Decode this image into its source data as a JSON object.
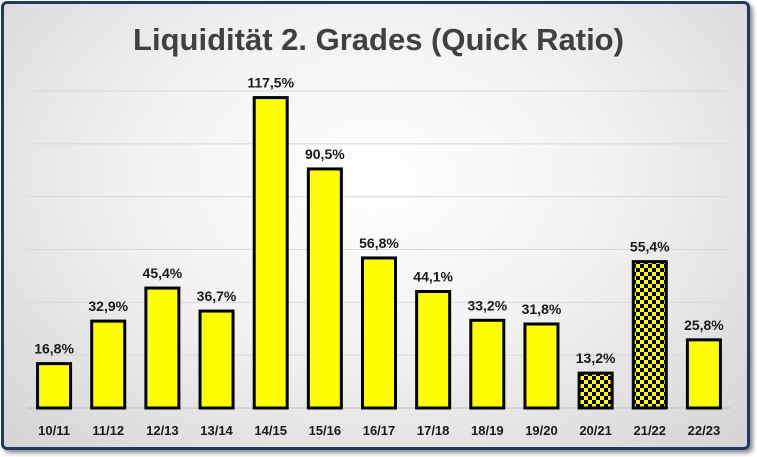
{
  "chart_data": {
    "type": "bar",
    "title": "Liquidität 2. Grades (Quick Ratio)",
    "categories": [
      "10/11",
      "11/12",
      "12/13",
      "13/14",
      "14/15",
      "15/16",
      "16/17",
      "17/18",
      "18/19",
      "19/20",
      "20/21",
      "21/22",
      "22/23"
    ],
    "values": [
      16.8,
      32.9,
      45.4,
      36.7,
      117.5,
      90.5,
      56.8,
      44.1,
      33.2,
      31.8,
      13.2,
      55.4,
      25.8
    ],
    "value_labels": [
      "16,8%",
      "32,9%",
      "45,4%",
      "36,7%",
      "117,5%",
      "90,5%",
      "56,8%",
      "44,1%",
      "33,2%",
      "31,8%",
      "13,2%",
      "55,4%",
      "25,8%"
    ],
    "patterned": [
      false,
      false,
      false,
      false,
      false,
      false,
      false,
      false,
      false,
      false,
      true,
      true,
      false
    ],
    "bar_color": "#ffff00",
    "border_color": "#000000",
    "frame_color": "#1f3864",
    "ylim": [
      0,
      120
    ],
    "grid": true,
    "xlabel": "",
    "ylabel": ""
  }
}
